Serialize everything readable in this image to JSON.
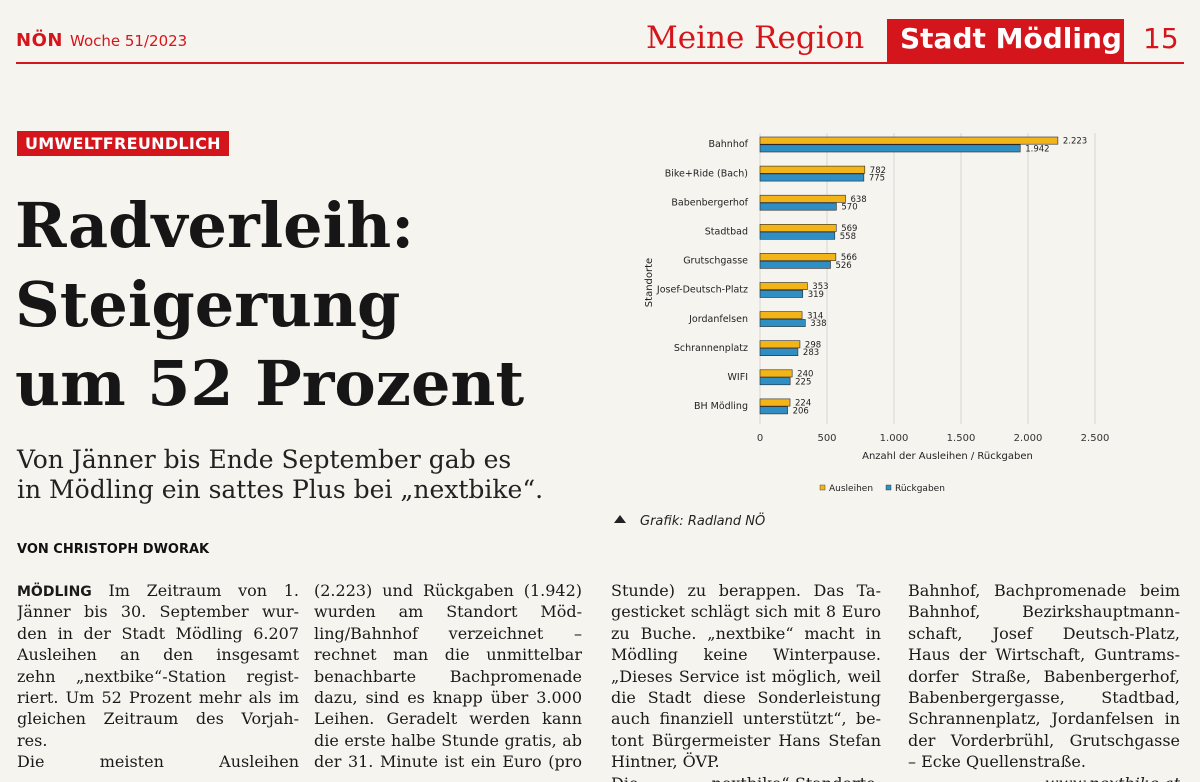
{
  "header": {
    "brand": "NÖN",
    "issue": "Woche 51/2023",
    "section": "Meine Region",
    "region": "Stadt Mödling",
    "page_number": "15"
  },
  "article": {
    "kicker": "UMWELTFREUNDLICH",
    "headline_lines": [
      "Radverleih:",
      "Steigerung",
      "um 52 Prozent"
    ],
    "subheadline_lines": [
      "Von Jänner bis Ende September gab es",
      "in Mödling ein sattes Plus bei „nextbike“."
    ],
    "byline": "VON CHRISTOPH DWORAK",
    "lead_word": "MÖDLING",
    "columns": [
      [
        " Im Zeitraum von 1.",
        "Jänner bis 30. September wur-",
        "den in der Stadt Mödling 6.207",
        "Ausleihen an den insgesamt",
        "zehn „nextbike“-Station regist-",
        "riert. Um 52 Prozent mehr als im",
        "gleichen Zeitraum des Vorjah-",
        "res.",
        "Die meisten Ausleihen"
      ],
      [
        "(2.223) und Rückgaben (1.942)",
        "wurden am Standort Möd-",
        "ling/Bahnhof verzeichnet –",
        "rechnet man die unmittelbar",
        "benachbarte Bachpromenade",
        "dazu, sind es knapp über 3.000",
        "Leihen. Geradelt werden kann",
        "die erste halbe Stunde gratis, ab",
        "der 31. Minute ist ein Euro (pro"
      ],
      [
        "Stunde) zu berappen. Das Ta-",
        "gesticket schlägt sich mit 8 Euro",
        "zu Buche. „nextbike“ macht in",
        "Mödling keine Winterpause.",
        "„Dieses Service ist möglich, weil",
        "die Stadt diese Sonderleistung",
        "auch finanziell unterstützt“, be-",
        "tont Bürgermeister Hans Stefan",
        "Hintner, ÖVP.",
        "Die „nextbike“-Standorte:"
      ],
      [
        "Bahnhof, Bachpromenade beim",
        "Bahnhof, Bezirkshauptmann-",
        "schaft, Josef Deutsch-Platz,",
        "Haus der Wirtschaft, Guntrams-",
        "dorfer Straße, Babenbergerhof,",
        "Babenbergergasse, Stadtbad,",
        "Schrannenplatz, Jordanfelsen in",
        "der Vorderbrühl, Grutschgasse",
        "– Ecke Quellenstraße.",
        "www.nextbike.at"
      ]
    ],
    "graphic_credit": "Grafik: Radland NÖ"
  },
  "chart_data": {
    "type": "bar",
    "orientation": "horizontal",
    "categories": [
      "Bahnhof",
      "Bike+Ride (Bach)",
      "Babenbergerhof",
      "Stadtbad",
      "Grutschgasse",
      "Josef-Deutsch-Platz",
      "Jordanfelsen",
      "Schrannenplatz",
      "WIFI",
      "BH Mödling"
    ],
    "series": [
      {
        "name": "Ausleihen",
        "color": "#f2b416",
        "values": [
          2223,
          782,
          638,
          569,
          566,
          353,
          314,
          298,
          240,
          224
        ],
        "labels": [
          "2.223",
          "782",
          "638",
          "569",
          "566",
          "353",
          "314",
          "298",
          "240",
          "224"
        ]
      },
      {
        "name": "Rückgaben",
        "color": "#2f8fc4",
        "values": [
          1942,
          775,
          570,
          558,
          526,
          319,
          338,
          283,
          225,
          206
        ],
        "labels": [
          "1.942",
          "775",
          "570",
          "558",
          "526",
          "319",
          "338",
          "283",
          "225",
          "206"
        ]
      }
    ],
    "xlim": [
      0,
      2500
    ],
    "xticks": [
      0,
      500,
      1000,
      1500,
      2000,
      2500
    ],
    "xtick_labels": [
      "0",
      "500",
      "1.000",
      "1.500",
      "2.000",
      "2.500"
    ],
    "xlabel": "Anzahl der Ausleihen / Rückgaben",
    "ylabel": "Standorte",
    "grid": true,
    "legend": "bottom"
  }
}
